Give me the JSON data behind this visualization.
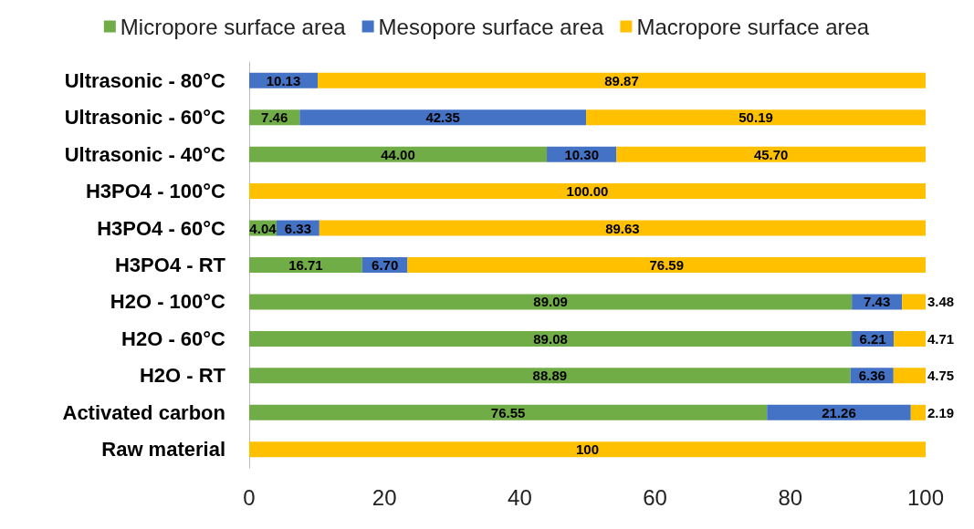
{
  "chart_data": {
    "type": "bar",
    "orientation": "horizontal",
    "stacked": true,
    "legend": "top",
    "grid": false,
    "categories": [
      "Ultrasonic - 80°C",
      "Ultrasonic - 60°C",
      "Ultrasonic - 40°C",
      "H3PO4 - 100°C",
      "H3PO4 - 60°C",
      "H3PO4 - RT",
      "H2O - 100°C",
      "H2O - 60°C",
      "H2O - RT",
      "Activated carbon",
      "Raw material"
    ],
    "xlim": [
      0,
      100
    ],
    "xticks": [
      0,
      20,
      40,
      60,
      80,
      100
    ],
    "series": [
      {
        "name": "Micropore surface area",
        "color": "#70ad47",
        "values": [
          0,
          7.46,
          44.0,
          0,
          4.04,
          16.71,
          89.09,
          89.08,
          88.89,
          76.55,
          0
        ],
        "value_labels": [
          null,
          "7.46",
          "44.00",
          null,
          "4.04",
          "16.71",
          "89.09",
          "89.08",
          "88.89",
          "76.55",
          null
        ]
      },
      {
        "name": "Mesopore surface area",
        "color": "#4472c4",
        "values": [
          10.13,
          42.35,
          10.3,
          0,
          6.33,
          6.7,
          7.43,
          6.21,
          6.36,
          21.26,
          0
        ],
        "value_labels": [
          "10.13",
          "42.35",
          "10.30",
          null,
          "6.33",
          "6.70",
          "7.43",
          "6.21",
          "6.36",
          "21.26",
          null
        ]
      },
      {
        "name": "Macropore surface area",
        "color": "#ffc000",
        "values": [
          89.87,
          50.19,
          45.7,
          100.0,
          89.63,
          76.59,
          3.48,
          4.71,
          4.75,
          2.19,
          100
        ],
        "value_labels": [
          "89.87",
          "50.19",
          "45.70",
          "100.00",
          "89.63",
          "76.59",
          "3.48",
          "4.71",
          "4.75",
          "2.19",
          "100"
        ]
      }
    ]
  }
}
